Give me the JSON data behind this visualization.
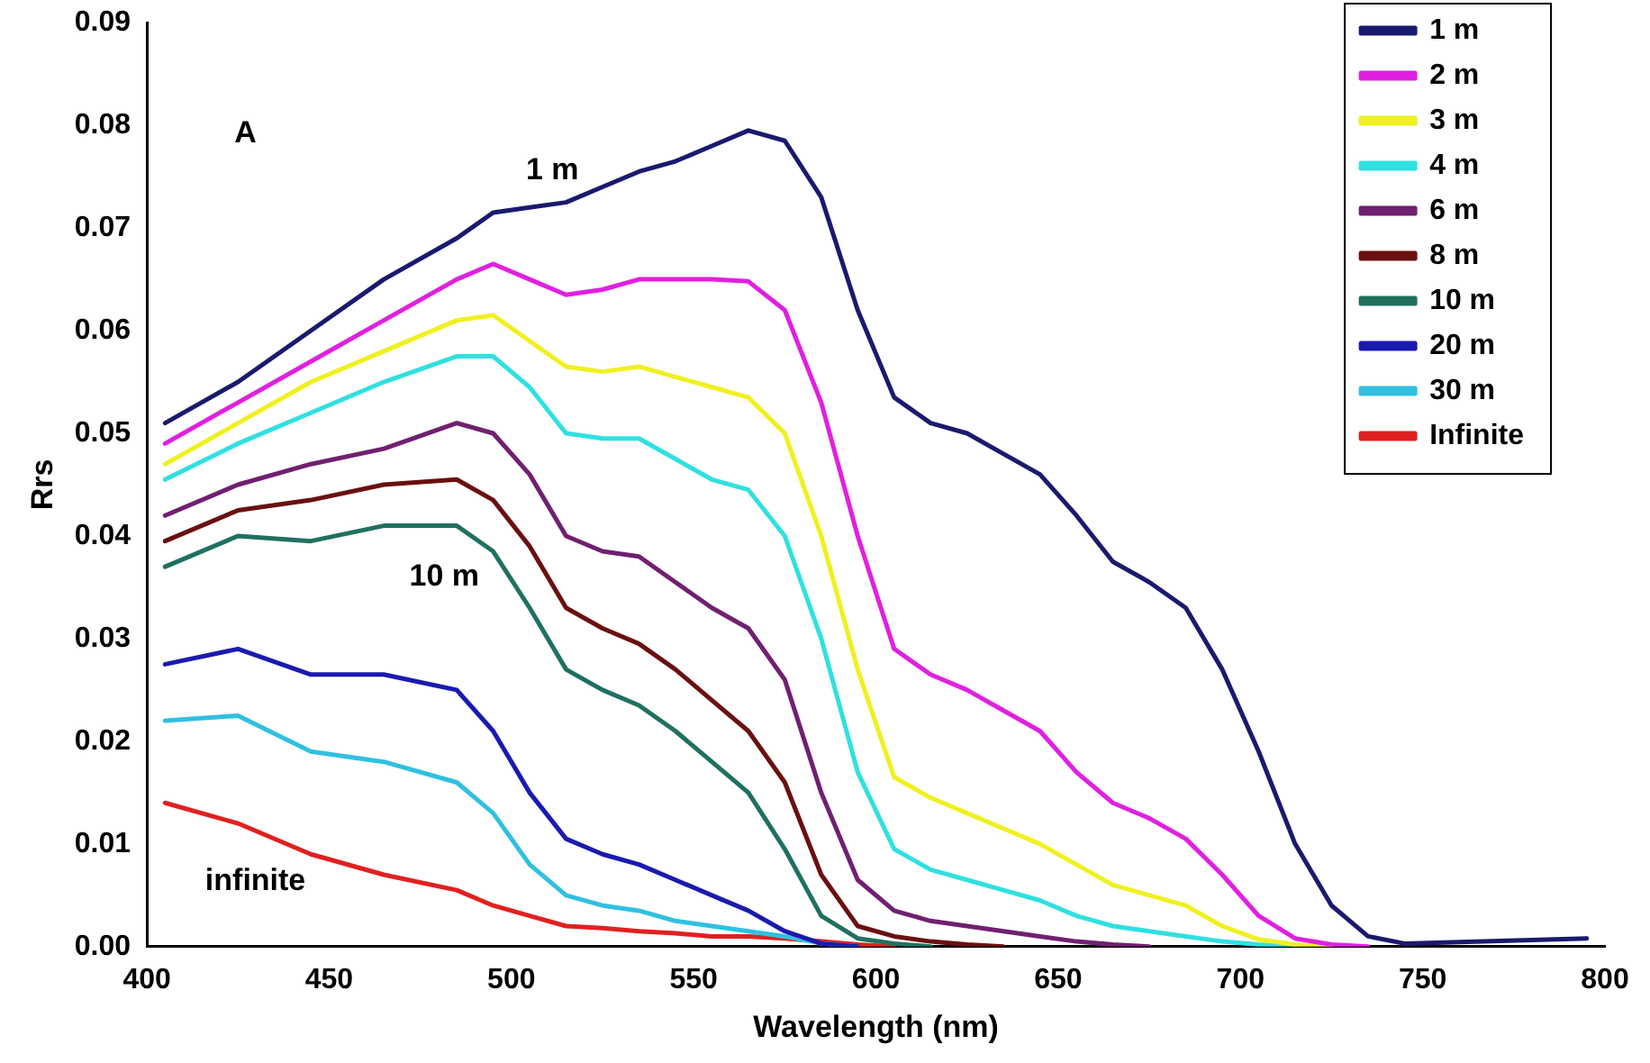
{
  "chart_data": {
    "type": "line",
    "xlabel": "Wavelength (nm)",
    "ylabel": "Rrs",
    "series": [
      {
        "name": "1 m",
        "color": "#1a1a6e",
        "x": [
          405,
          425,
          445,
          465,
          485,
          495,
          505,
          515,
          525,
          535,
          545,
          555,
          565,
          575,
          585,
          595,
          605,
          615,
          625,
          635,
          645,
          655,
          665,
          675,
          685,
          695,
          705,
          715,
          725,
          735,
          745,
          795
        ],
        "values": [
          0.051,
          0.055,
          0.06,
          0.065,
          0.069,
          0.0715,
          0.072,
          0.0725,
          0.074,
          0.0755,
          0.0765,
          0.078,
          0.0795,
          0.0785,
          0.073,
          0.062,
          0.0535,
          0.051,
          0.05,
          0.048,
          0.046,
          0.042,
          0.0375,
          0.0355,
          0.033,
          0.027,
          0.019,
          0.01,
          0.004,
          0.001,
          0.0003,
          0.0008
        ]
      },
      {
        "name": "2 m",
        "color": "#e020e0",
        "x": [
          405,
          425,
          445,
          465,
          485,
          495,
          505,
          515,
          525,
          535,
          545,
          555,
          565,
          575,
          585,
          595,
          605,
          615,
          625,
          635,
          645,
          655,
          665,
          675,
          685,
          695,
          705,
          715,
          725,
          735
        ],
        "values": [
          0.049,
          0.053,
          0.057,
          0.061,
          0.065,
          0.0665,
          0.065,
          0.0635,
          0.064,
          0.065,
          0.065,
          0.065,
          0.0648,
          0.062,
          0.053,
          0.04,
          0.029,
          0.0265,
          0.025,
          0.023,
          0.021,
          0.017,
          0.014,
          0.0125,
          0.0105,
          0.007,
          0.003,
          0.0008,
          0.0002,
          0
        ]
      },
      {
        "name": "3 m",
        "color": "#f0f020",
        "x": [
          405,
          425,
          445,
          465,
          485,
          495,
          505,
          515,
          525,
          535,
          545,
          555,
          565,
          575,
          585,
          595,
          605,
          615,
          625,
          635,
          645,
          655,
          665,
          675,
          685,
          695,
          705,
          715,
          725
        ],
        "values": [
          0.047,
          0.051,
          0.055,
          0.058,
          0.061,
          0.0615,
          0.059,
          0.0565,
          0.056,
          0.0565,
          0.0555,
          0.0545,
          0.0535,
          0.05,
          0.04,
          0.027,
          0.0165,
          0.0145,
          0.013,
          0.0115,
          0.01,
          0.008,
          0.006,
          0.005,
          0.004,
          0.002,
          0.0007,
          0.0002,
          0
        ]
      },
      {
        "name": "4 m",
        "color": "#30e0e0",
        "x": [
          405,
          425,
          445,
          465,
          485,
          495,
          505,
          515,
          525,
          535,
          545,
          555,
          565,
          575,
          585,
          595,
          605,
          615,
          625,
          635,
          645,
          655,
          665,
          675,
          685,
          695,
          705,
          715
        ],
        "values": [
          0.0455,
          0.049,
          0.052,
          0.055,
          0.0575,
          0.0575,
          0.0545,
          0.05,
          0.0495,
          0.0495,
          0.0475,
          0.0455,
          0.0445,
          0.04,
          0.03,
          0.017,
          0.0095,
          0.0075,
          0.0065,
          0.0055,
          0.0045,
          0.003,
          0.002,
          0.0015,
          0.001,
          0.0005,
          0.0002,
          0
        ]
      },
      {
        "name": "6 m",
        "color": "#702070",
        "x": [
          405,
          425,
          445,
          465,
          485,
          495,
          505,
          515,
          525,
          535,
          545,
          555,
          565,
          575,
          585,
          595,
          605,
          615,
          625,
          635,
          645,
          655,
          665,
          675
        ],
        "values": [
          0.042,
          0.045,
          0.047,
          0.0485,
          0.051,
          0.05,
          0.046,
          0.04,
          0.0385,
          0.038,
          0.0355,
          0.033,
          0.031,
          0.026,
          0.015,
          0.0065,
          0.0035,
          0.0025,
          0.002,
          0.0015,
          0.001,
          0.0005,
          0.0002,
          0
        ]
      },
      {
        "name": "8 m",
        "color": "#6a1010",
        "x": [
          405,
          425,
          445,
          465,
          485,
          495,
          505,
          515,
          525,
          535,
          545,
          555,
          565,
          575,
          585,
          595,
          605,
          615,
          625,
          635
        ],
        "values": [
          0.0395,
          0.0425,
          0.0435,
          0.045,
          0.0455,
          0.0435,
          0.039,
          0.033,
          0.031,
          0.0295,
          0.027,
          0.024,
          0.021,
          0.016,
          0.007,
          0.002,
          0.001,
          0.0005,
          0.0002,
          0
        ]
      },
      {
        "name": "10 m",
        "color": "#207060",
        "x": [
          405,
          425,
          445,
          465,
          485,
          495,
          505,
          515,
          525,
          535,
          545,
          555,
          565,
          575,
          585,
          595,
          605,
          615
        ],
        "values": [
          0.037,
          0.04,
          0.0395,
          0.041,
          0.041,
          0.0385,
          0.033,
          0.027,
          0.025,
          0.0235,
          0.021,
          0.018,
          0.015,
          0.0095,
          0.003,
          0.0008,
          0.0003,
          0
        ]
      },
      {
        "name": "20 m",
        "color": "#1a1ab0",
        "x": [
          405,
          425,
          445,
          465,
          485,
          495,
          505,
          515,
          525,
          535,
          545,
          555,
          565,
          575,
          585,
          595
        ],
        "values": [
          0.0275,
          0.029,
          0.0265,
          0.0265,
          0.025,
          0.021,
          0.015,
          0.0105,
          0.009,
          0.008,
          0.0065,
          0.005,
          0.0035,
          0.0015,
          0.0003,
          0
        ]
      },
      {
        "name": "30 m",
        "color": "#30c0e0",
        "x": [
          405,
          425,
          445,
          465,
          485,
          495,
          505,
          515,
          525,
          535,
          545,
          555,
          565,
          575,
          585,
          595
        ],
        "values": [
          0.022,
          0.0225,
          0.019,
          0.018,
          0.016,
          0.013,
          0.008,
          0.005,
          0.004,
          0.0035,
          0.0025,
          0.002,
          0.0015,
          0.001,
          0.0003,
          0
        ]
      },
      {
        "name": "Infinite",
        "color": "#e02020",
        "x": [
          405,
          425,
          445,
          465,
          485,
          495,
          505,
          515,
          525,
          535,
          545,
          555,
          565,
          575,
          585,
          595,
          605
        ],
        "values": [
          0.014,
          0.012,
          0.009,
          0.007,
          0.0055,
          0.004,
          0.003,
          0.002,
          0.0018,
          0.0015,
          0.0013,
          0.001,
          0.001,
          0.0008,
          0.0005,
          0.0002,
          0
        ]
      }
    ],
    "xlim": [
      400,
      800
    ],
    "xticks": [
      400,
      450,
      500,
      550,
      600,
      650,
      700,
      750,
      800
    ],
    "ylim": [
      0,
      0.09
    ],
    "yticks": [
      {
        "value": 0,
        "label": "0.00"
      },
      {
        "value": 0.01,
        "label": "0.01"
      },
      {
        "value": 0.02,
        "label": "0.02"
      },
      {
        "value": 0.03,
        "label": "0.03"
      },
      {
        "value": 0.04,
        "label": "0.04"
      },
      {
        "value": 0.05,
        "label": "0.05"
      },
      {
        "value": 0.06,
        "label": "0.06"
      },
      {
        "value": 0.07,
        "label": "0.07"
      },
      {
        "value": 0.08,
        "label": "0.08"
      },
      {
        "value": 0.09,
        "label": "0.09"
      }
    ],
    "annotations": [
      "A",
      "1 m",
      "10 m",
      "infinite"
    ],
    "grid": false,
    "legend": "top right",
    "marker": "none",
    "line_style": "solid"
  }
}
